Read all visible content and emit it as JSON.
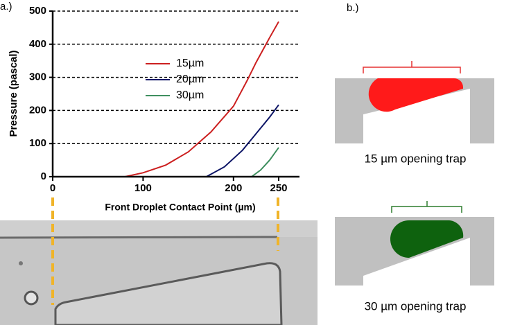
{
  "panel_labels": [
    "a.)",
    "b.)"
  ],
  "chart_data": {
    "type": "line",
    "xlabel": "Front Droplet Contact Point  (µm)",
    "ylabel": "Pressure (pascal)",
    "xlim": [
      0,
      273
    ],
    "xticks": [
      0,
      100,
      200,
      250
    ],
    "ylim": [
      0,
      500
    ],
    "yticks": [
      0,
      100,
      200,
      300,
      400,
      500
    ],
    "grid": true,
    "series": [
      {
        "name": "15µm",
        "color": "#cc1f1f",
        "x": [
          50,
          80,
          100,
          125,
          150,
          175,
          200,
          215,
          225,
          240,
          250
        ],
        "values": [
          0,
          0,
          12,
          35,
          75,
          135,
          213,
          290,
          345,
          420,
          468
        ]
      },
      {
        "name": "20µm",
        "color": "#0d1566",
        "x": [
          50,
          170,
          190,
          210,
          225,
          240,
          250
        ],
        "values": [
          0,
          0,
          30,
          80,
          130,
          180,
          217
        ]
      },
      {
        "name": "30µm",
        "color": "#3f8f5f",
        "x": [
          50,
          220,
          230,
          240,
          250
        ],
        "values": [
          0,
          0,
          20,
          50,
          88
        ]
      }
    ]
  },
  "diagram_captions": [
    "15 µm opening trap",
    "30 µm opening trap"
  ]
}
